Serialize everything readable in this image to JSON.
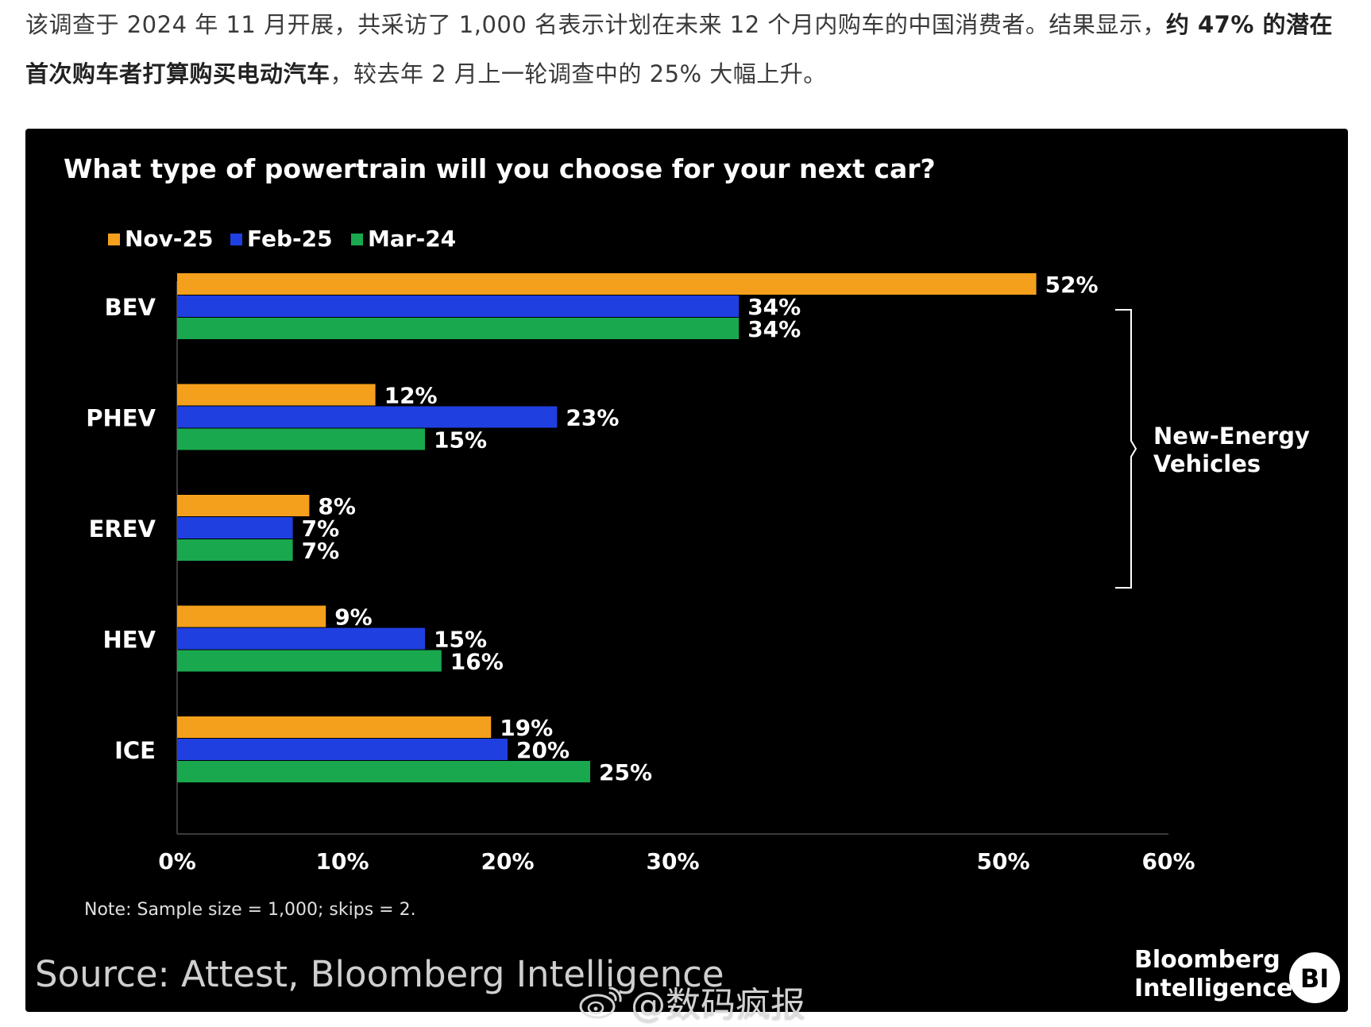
{
  "article": {
    "part1": "该调查于 2024 年 11 月开展，共采访了 1,000 名表示计划在未来 12 个月内购车的中国消费者。结果显示，",
    "bold": "约 47% 的潜在首次购车者打算购买电动汽车",
    "part2": "，较去年 2 月上一轮调查中的 25% 大幅上升。"
  },
  "chart_data": {
    "type": "bar",
    "orientation": "horizontal",
    "title": "What type of powertrain will you choose for your next car?",
    "categories": [
      "BEV",
      "PHEV",
      "EREV",
      "HEV",
      "ICE"
    ],
    "series": [
      {
        "name": "Nov-25",
        "color": "#f5a01c",
        "values": [
          52,
          12,
          8,
          9,
          19
        ]
      },
      {
        "name": "Feb-25",
        "color": "#1f3fe0",
        "values": [
          34,
          23,
          7,
          15,
          20
        ]
      },
      {
        "name": "Mar-24",
        "color": "#1aa84f",
        "values": [
          34,
          15,
          7,
          16,
          25
        ]
      }
    ],
    "x_ticks": [
      "0%",
      "10%",
      "20%",
      "30%",
      "",
      "50%",
      "60%"
    ],
    "xlim": [
      0,
      60
    ],
    "value_suffix": "%",
    "legend_position": "top-left",
    "grid": false,
    "bracket_label": [
      "New-Energy",
      "Vehicles"
    ],
    "bracket_categories": [
      "BEV",
      "PHEV",
      "EREV"
    ],
    "note": "Note: Sample size = 1,000; skips = 2.",
    "source": "Source: Attest, Bloomberg Intelligence",
    "brand": [
      "Bloomberg",
      "Intelligence"
    ],
    "brand_badge": "BI"
  },
  "watermark": {
    "text": "@数码疯报",
    "icon": "weibo-icon"
  }
}
